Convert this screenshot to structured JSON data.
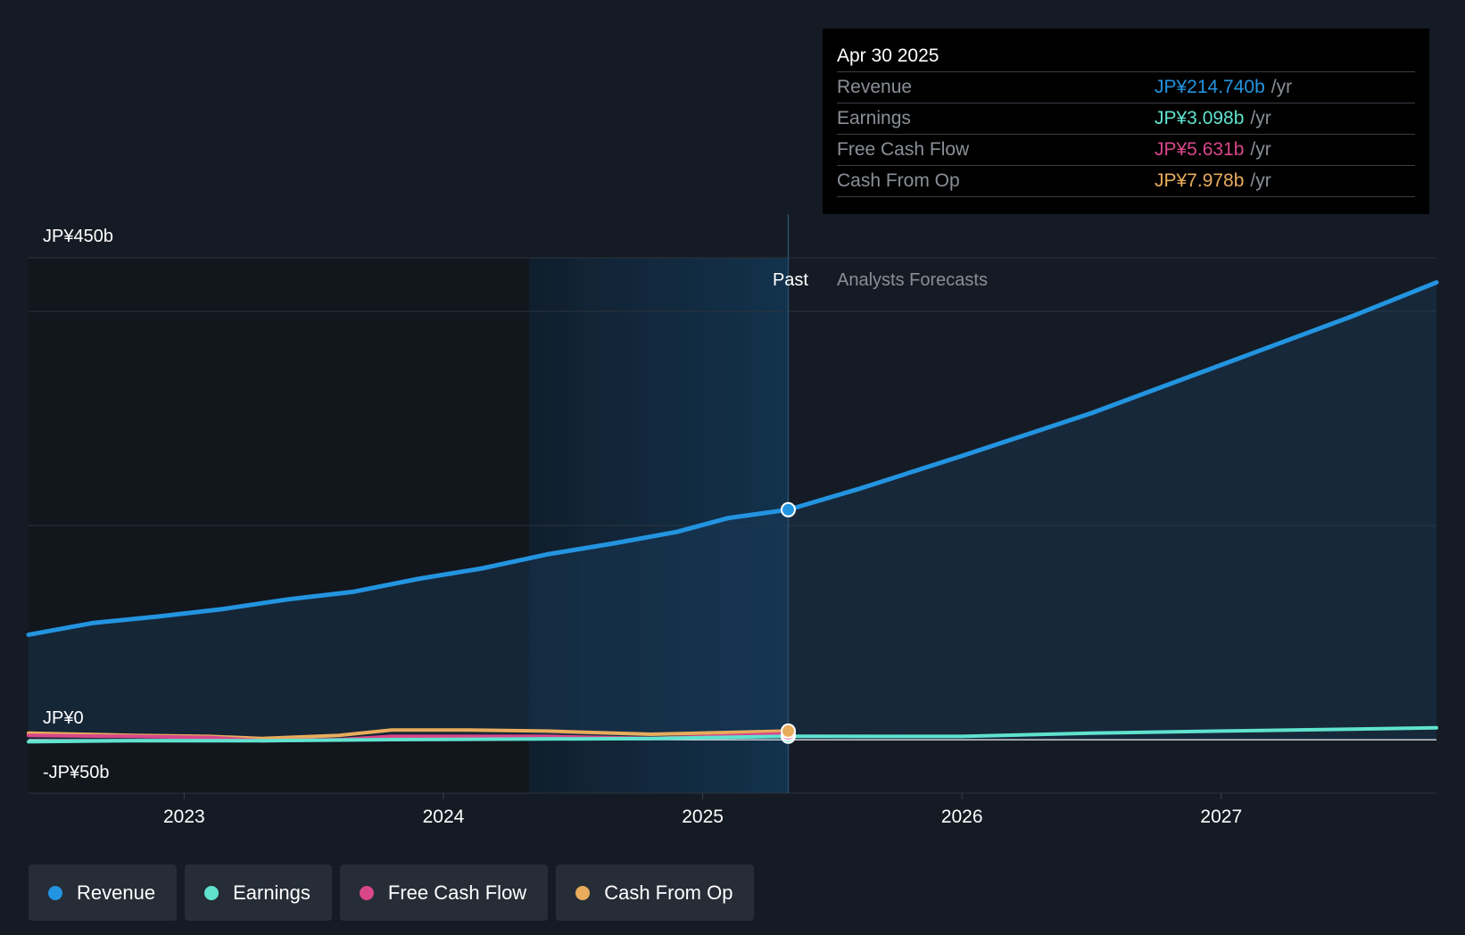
{
  "tooltip": {
    "date": "Apr 30 2025",
    "unit": "/yr",
    "rows": [
      {
        "label": "Revenue",
        "value": "JP¥214.740b",
        "color": "#2394e0"
      },
      {
        "label": "Earnings",
        "value": "JP¥3.098b",
        "color": "#5fe3cf"
      },
      {
        "label": "Free Cash Flow",
        "value": "JP¥5.631b",
        "color": "#d9478a"
      },
      {
        "label": "Cash From Op",
        "value": "JP¥7.978b",
        "color": "#e8ac5c"
      }
    ]
  },
  "legend": [
    {
      "label": "Revenue",
      "color": "#2394e0"
    },
    {
      "label": "Earnings",
      "color": "#5fe3cf"
    },
    {
      "label": "Free Cash Flow",
      "color": "#d9478a"
    },
    {
      "label": "Cash From Op",
      "color": "#e8ac5c"
    }
  ],
  "chart_data": {
    "type": "line",
    "y_tick_labels": [
      "JP¥450b",
      "JP¥0",
      "-JP¥50b"
    ],
    "past_label": "Past",
    "forecast_label": "Analysts Forecasts",
    "ylim": [
      -50,
      450
    ],
    "xlim": [
      2022.4,
      2027.83
    ],
    "x_ticks": [
      2023,
      2024,
      2025,
      2026,
      2027
    ],
    "past_band_start": 2024.33,
    "divider_x": 2025.33,
    "series": [
      {
        "name": "Revenue",
        "color": "#2394e0",
        "area": true,
        "points": [
          [
            2022.4,
            98
          ],
          [
            2022.65,
            109
          ],
          [
            2022.9,
            115
          ],
          [
            2023.15,
            122
          ],
          [
            2023.4,
            131
          ],
          [
            2023.65,
            138
          ],
          [
            2023.9,
            150
          ],
          [
            2024.15,
            160
          ],
          [
            2024.4,
            173
          ],
          [
            2024.65,
            183
          ],
          [
            2024.9,
            194
          ],
          [
            2025.1,
            207
          ],
          [
            2025.33,
            214.74
          ],
          [
            2025.6,
            234
          ],
          [
            2026.0,
            265
          ],
          [
            2026.5,
            305
          ],
          [
            2027.0,
            350
          ],
          [
            2027.5,
            395
          ],
          [
            2027.83,
            427
          ]
        ]
      },
      {
        "name": "Earnings",
        "color": "#5fe3cf",
        "points": [
          [
            2022.4,
            -2
          ],
          [
            2022.8,
            -1
          ],
          [
            2023.3,
            -1
          ],
          [
            2023.8,
            0
          ],
          [
            2024.3,
            0.5
          ],
          [
            2024.8,
            1
          ],
          [
            2025.33,
            3.098
          ],
          [
            2026.0,
            3
          ],
          [
            2026.5,
            6
          ],
          [
            2027.0,
            8
          ],
          [
            2027.83,
            11
          ]
        ]
      },
      {
        "name": "Free Cash Flow",
        "color": "#d9478a",
        "points": [
          [
            2022.4,
            4
          ],
          [
            2022.8,
            3
          ],
          [
            2023.1,
            2
          ],
          [
            2023.3,
            -1
          ],
          [
            2023.6,
            0
          ],
          [
            2023.8,
            3
          ],
          [
            2024.1,
            3
          ],
          [
            2024.4,
            3
          ],
          [
            2024.8,
            1
          ],
          [
            2025.33,
            5.631
          ]
        ]
      },
      {
        "name": "Cash From Op",
        "color": "#e8ac5c",
        "points": [
          [
            2022.4,
            6
          ],
          [
            2022.8,
            4
          ],
          [
            2023.1,
            3
          ],
          [
            2023.3,
            1
          ],
          [
            2023.6,
            4
          ],
          [
            2023.8,
            9
          ],
          [
            2024.1,
            9
          ],
          [
            2024.4,
            8
          ],
          [
            2024.8,
            5
          ],
          [
            2025.33,
            7.978
          ]
        ]
      }
    ],
    "highlight_x": 2025.33
  }
}
